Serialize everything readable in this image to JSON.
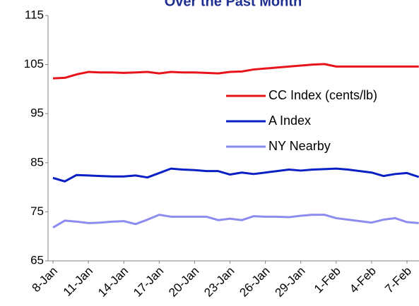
{
  "chart_data": {
    "type": "line",
    "title": "Over the Past Month",
    "categories": [
      "8-Jan",
      null,
      null,
      "11-Jan",
      null,
      null,
      "14-Jan",
      null,
      null,
      "17-Jan",
      null,
      null,
      "20-Jan",
      null,
      null,
      "23-Jan",
      null,
      null,
      "26-Jan",
      null,
      null,
      "29-Jan",
      null,
      null,
      "1-Feb",
      null,
      null,
      "4-Feb",
      null,
      null,
      "7-Feb",
      null
    ],
    "series": [
      {
        "name": "CC Index (cents/lb)",
        "color": "#e8141b",
        "values": [
          102.2,
          102.3,
          103,
          103.5,
          103.4,
          103.4,
          103.3,
          103.4,
          103.5,
          103.2,
          103.5,
          103.4,
          103.4,
          103.3,
          103.2,
          103.5,
          103.6,
          104,
          104.2,
          104.4,
          104.6,
          104.8,
          105,
          105.1,
          104.6,
          104.6,
          104.6,
          104.6,
          104.6,
          104.6,
          104.6,
          104.6
        ]
      },
      {
        "name": "A Index",
        "color": "#0a1fc4",
        "values": [
          81.9,
          81.2,
          82.5,
          82.4,
          82.3,
          82.2,
          82.2,
          82.4,
          82,
          82.9,
          83.8,
          83.6,
          83.5,
          83.3,
          83.3,
          82.6,
          83,
          82.7,
          83,
          83.3,
          83.6,
          83.4,
          83.6,
          83.7,
          83.8,
          83.6,
          83.3,
          83,
          82.3,
          82.7,
          82.9,
          82.1
        ]
      },
      {
        "name": "NY Nearby",
        "color": "#8c8cf0",
        "values": [
          71.8,
          73.2,
          73,
          72.7,
          72.8,
          73,
          73.1,
          72.5,
          73.4,
          74.4,
          74,
          74,
          74,
          74,
          73.3,
          73.6,
          73.3,
          74.1,
          74,
          74,
          73.9,
          74.2,
          74.4,
          74.4,
          73.7,
          73.4,
          73.1,
          72.8,
          73.4,
          73.7,
          72.9,
          72.7
        ]
      }
    ],
    "ylim": [
      65,
      115
    ],
    "yticks": [
      65,
      75,
      85,
      95,
      105,
      115
    ],
    "grid": false
  }
}
